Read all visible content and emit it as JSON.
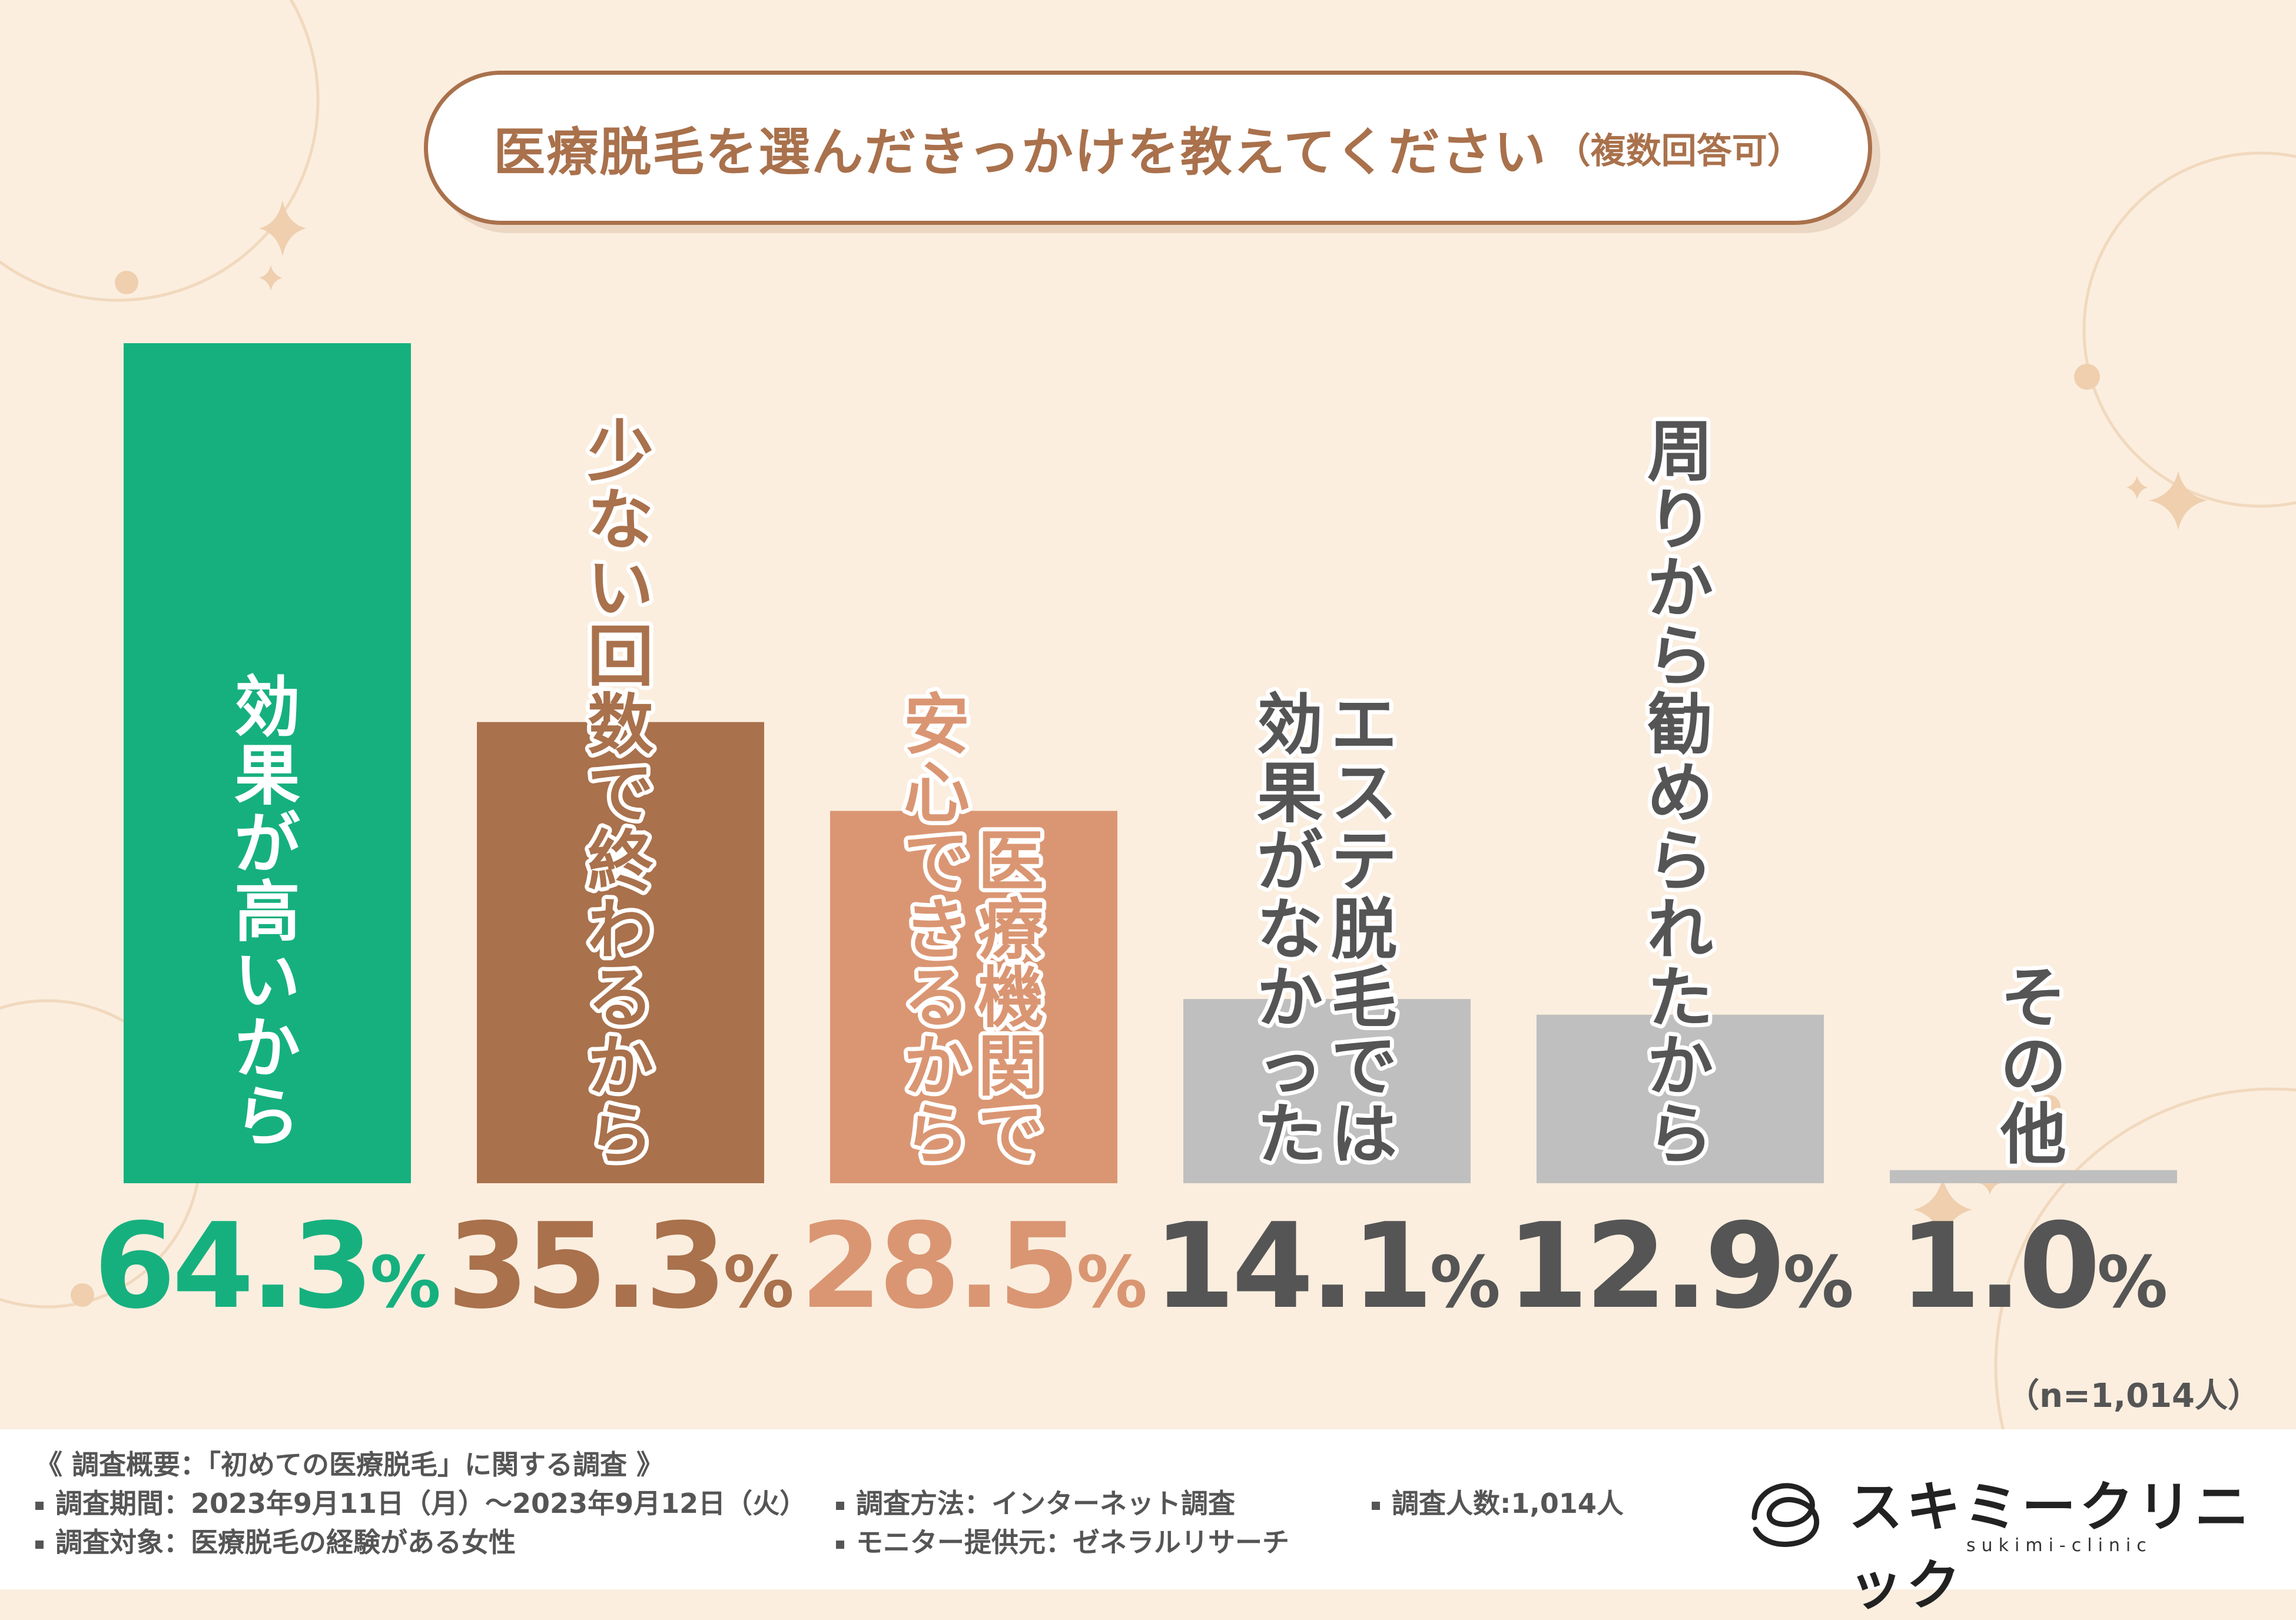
{
  "title": {
    "main": "医療脱毛を選んだきっかけを教えてください",
    "sub": "（複数回答可）"
  },
  "sample_size": "（n=1,014人）",
  "colors": {
    "background": "#FBEEDF",
    "accent": "#A9714C",
    "green": "#16B07F",
    "brown": "#A9714C",
    "salmon": "#DA9673",
    "gray": "#BFBFBF",
    "gray_text": "#555555"
  },
  "chart_data": {
    "type": "bar",
    "title": "医療脱毛を選んだきっかけを教えてください（複数回答可）",
    "categories": [
      "効果が高いから",
      "少ない回数で終わるから",
      "医療機関で安心できるから",
      "エステ脱毛では効果がなかった",
      "周りから勧められたから",
      "その他"
    ],
    "label_columns": [
      [
        "効果が高いから"
      ],
      [
        "少ない回数で終わるから"
      ],
      [
        "医療機関で",
        "安心できるから"
      ],
      [
        "エステ脱毛では",
        "効果がなかった"
      ],
      [
        "周りから勧められたから"
      ],
      [
        "その他"
      ]
    ],
    "values": [
      64.3,
      35.3,
      28.5,
      14.1,
      12.9,
      1.0
    ],
    "value_labels": [
      {
        "num": "64.3",
        "pct": "%"
      },
      {
        "num": "35.3",
        "pct": "%"
      },
      {
        "num": "28.5",
        "pct": "%"
      },
      {
        "num": "14.1",
        "pct": "%"
      },
      {
        "num": "12.9",
        "pct": "%"
      },
      {
        "num": "1.0",
        "pct": "%"
      }
    ],
    "colors": [
      "#16B07F",
      "#A9714C",
      "#DA9673",
      "#BFBFBF",
      "#BFBFBF",
      "#BFBFBF"
    ],
    "label_colors": [
      "#FFFFFF",
      "#A9714C",
      "#DA9673",
      "#555555",
      "#555555",
      "#555555"
    ],
    "ylim": [
      0,
      64.3
    ],
    "xlabel": "",
    "ylabel": ""
  },
  "footer": {
    "overview": "《 調査概要：「初めての医療脱毛」に関する調査 》",
    "period": "調査期間：2023年9月11日（月）～2023年9月12日（火）",
    "target": "調査対象：医療脱毛の経験がある女性",
    "method": "調査方法：インターネット調査",
    "monitor": "モニター提供元：ゼネラルリサーチ",
    "count": "調査人数:1,014人"
  },
  "logo": {
    "name": "スキミークリニック",
    "sub": "sukimi-clinic"
  }
}
